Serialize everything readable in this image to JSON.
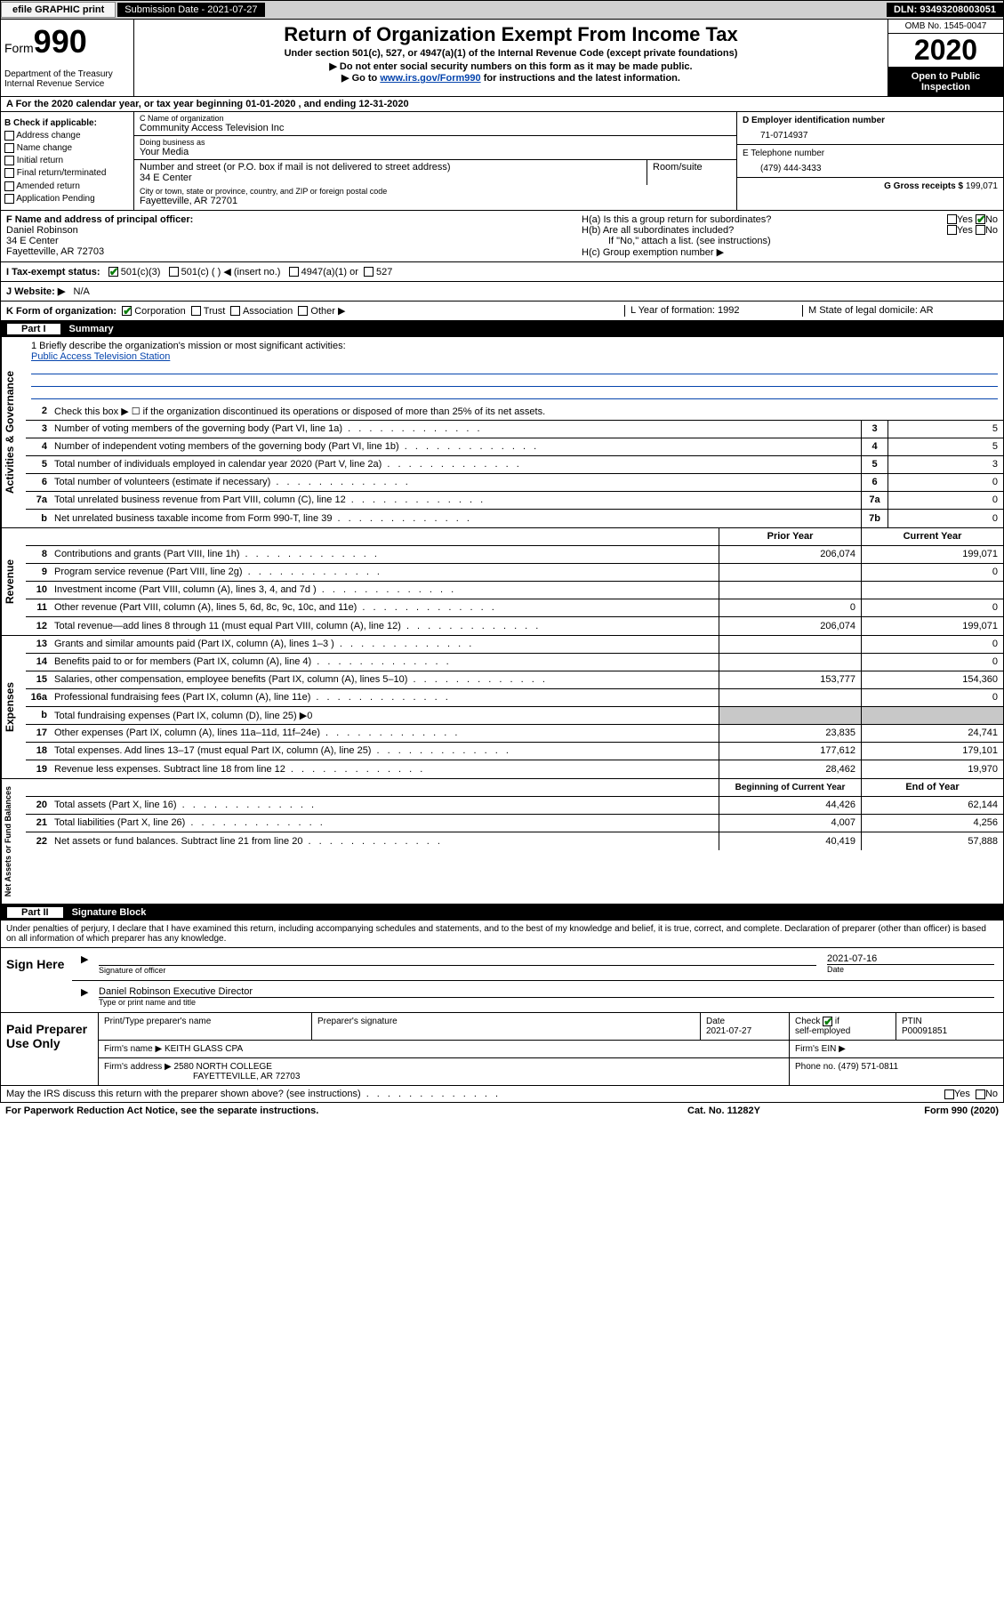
{
  "topbar": {
    "efile": "efile GRAPHIC print",
    "subdate_label": "Submission Date - 2021-07-27",
    "dln": "DLN: 93493208003051"
  },
  "header": {
    "form_label": "Form",
    "form_num": "990",
    "dept": "Department of the Treasury\nInternal Revenue Service",
    "title": "Return of Organization Exempt From Income Tax",
    "sub1": "Under section 501(c), 527, or 4947(a)(1) of the Internal Revenue Code (except private foundations)",
    "sub2": "▶ Do not enter social security numbers on this form as it may be made public.",
    "sub3_pre": "▶ Go to ",
    "sub3_link": "www.irs.gov/Form990",
    "sub3_post": " for instructions and the latest information.",
    "omb": "OMB No. 1545-0047",
    "year": "2020",
    "inspect1": "Open to Public",
    "inspect2": "Inspection"
  },
  "sectionA": "A For the 2020 calendar year, or tax year beginning 01-01-2020    , and ending 12-31-2020",
  "colB": {
    "hdr": "B Check if applicable:",
    "i1": "Address change",
    "i2": "Name change",
    "i3": "Initial return",
    "i4": "Final return/terminated",
    "i5": "Amended return",
    "i6": "Application Pending"
  },
  "colC": {
    "name_lbl": "C Name of organization",
    "name": "Community Access Television Inc",
    "dba_lbl": "Doing business as",
    "dba": "Your Media",
    "street_lbl": "Number and street (or P.O. box if mail is not delivered to street address)",
    "street": "34 E Center",
    "suite_lbl": "Room/suite",
    "city_lbl": "City or town, state or province, country, and ZIP or foreign postal code",
    "city": "Fayetteville, AR  72701"
  },
  "colDE": {
    "d_lbl": "D Employer identification number",
    "d_val": "71-0714937",
    "e_lbl": "E Telephone number",
    "e_val": "(479) 444-3433",
    "g_lbl": "G Gross receipts $ ",
    "g_val": "199,071"
  },
  "rowF": {
    "lbl": "F Name and address of principal officer:",
    "l1": "Daniel Robinson",
    "l2": "34 E Center",
    "l3": "Fayetteville, AR  72703",
    "ha": "H(a)  Is this a group return for subordinates?",
    "hb": "H(b)  Are all subordinates included?",
    "hb_note": "If \"No,\" attach a list. (see instructions)",
    "hc": "H(c)  Group exemption number ▶"
  },
  "taxRow": {
    "lbl": "I   Tax-exempt status:",
    "o1": "501(c)(3)",
    "o2": "501(c) (  ) ◀ (insert no.)",
    "o3": "4947(a)(1) or",
    "o4": "527"
  },
  "webRow": {
    "lbl": "J   Website: ▶",
    "val": "N/A"
  },
  "kRow": {
    "k": "K Form of organization:",
    "k1": "Corporation",
    "k2": "Trust",
    "k3": "Association",
    "k4": "Other ▶",
    "l": "L Year of formation: 1992",
    "m": "M State of legal domicile: AR"
  },
  "part1": {
    "num": "Part I",
    "title": "Summary"
  },
  "mission": {
    "l1": "1  Briefly describe the organization's mission or most significant activities:",
    "txt": "Public Access Television Station"
  },
  "lines_gov": [
    {
      "n": "2",
      "d": "Check this box ▶ ☐  if the organization discontinued its operations or disposed of more than 25% of its net assets."
    },
    {
      "n": "3",
      "d": "Number of voting members of the governing body (Part VI, line 1a)",
      "b": "3",
      "v": "5"
    },
    {
      "n": "4",
      "d": "Number of independent voting members of the governing body (Part VI, line 1b)",
      "b": "4",
      "v": "5"
    },
    {
      "n": "5",
      "d": "Total number of individuals employed in calendar year 2020 (Part V, line 2a)",
      "b": "5",
      "v": "3"
    },
    {
      "n": "6",
      "d": "Total number of volunteers (estimate if necessary)",
      "b": "6",
      "v": "0"
    },
    {
      "n": "7a",
      "d": "Total unrelated business revenue from Part VIII, column (C), line 12",
      "b": "7a",
      "v": "0"
    },
    {
      "n": "b",
      "d": "Net unrelated business taxable income from Form 990-T, line 39",
      "b": "7b",
      "v": "0"
    }
  ],
  "rev_hdr": {
    "py": "Prior Year",
    "cy": "Current Year"
  },
  "lines_rev": [
    {
      "n": "8",
      "d": "Contributions and grants (Part VIII, line 1h)",
      "py": "206,074",
      "cy": "199,071"
    },
    {
      "n": "9",
      "d": "Program service revenue (Part VIII, line 2g)",
      "py": "",
      "cy": "0"
    },
    {
      "n": "10",
      "d": "Investment income (Part VIII, column (A), lines 3, 4, and 7d )",
      "py": "",
      "cy": ""
    },
    {
      "n": "11",
      "d": "Other revenue (Part VIII, column (A), lines 5, 6d, 8c, 9c, 10c, and 11e)",
      "py": "0",
      "cy": "0"
    },
    {
      "n": "12",
      "d": "Total revenue—add lines 8 through 11 (must equal Part VIII, column (A), line 12)",
      "py": "206,074",
      "cy": "199,071"
    }
  ],
  "lines_exp": [
    {
      "n": "13",
      "d": "Grants and similar amounts paid (Part IX, column (A), lines 1–3 )",
      "py": "",
      "cy": "0"
    },
    {
      "n": "14",
      "d": "Benefits paid to or for members (Part IX, column (A), line 4)",
      "py": "",
      "cy": "0"
    },
    {
      "n": "15",
      "d": "Salaries, other compensation, employee benefits (Part IX, column (A), lines 5–10)",
      "py": "153,777",
      "cy": "154,360"
    },
    {
      "n": "16a",
      "d": "Professional fundraising fees (Part IX, column (A), line 11e)",
      "py": "",
      "cy": "0"
    },
    {
      "n": "b",
      "d": "Total fundraising expenses (Part IX, column (D), line 25) ▶0",
      "gray": true
    },
    {
      "n": "17",
      "d": "Other expenses (Part IX, column (A), lines 11a–11d, 11f–24e)",
      "py": "23,835",
      "cy": "24,741"
    },
    {
      "n": "18",
      "d": "Total expenses. Add lines 13–17 (must equal Part IX, column (A), line 25)",
      "py": "177,612",
      "cy": "179,101"
    },
    {
      "n": "19",
      "d": "Revenue less expenses. Subtract line 18 from line 12",
      "py": "28,462",
      "cy": "19,970"
    }
  ],
  "net_hdr": {
    "py": "Beginning of Current Year",
    "cy": "End of Year"
  },
  "lines_net": [
    {
      "n": "20",
      "d": "Total assets (Part X, line 16)",
      "py": "44,426",
      "cy": "62,144"
    },
    {
      "n": "21",
      "d": "Total liabilities (Part X, line 26)",
      "py": "4,007",
      "cy": "4,256"
    },
    {
      "n": "22",
      "d": "Net assets or fund balances. Subtract line 21 from line 20",
      "py": "40,419",
      "cy": "57,888"
    }
  ],
  "sidelabels": {
    "gov": "Activities & Governance",
    "rev": "Revenue",
    "exp": "Expenses",
    "net": "Net Assets or Fund Balances"
  },
  "part2": {
    "num": "Part II",
    "title": "Signature Block"
  },
  "sig_text": "Under penalties of perjury, I declare that I have examined this return, including accompanying schedules and statements, and to the best of my knowledge and belief, it is true, correct, and complete. Declaration of preparer (other than officer) is based on all information of which preparer has any knowledge.",
  "sign": {
    "lbl": "Sign Here",
    "sig_lbl": "Signature of officer",
    "date": "2021-07-16",
    "date_lbl": "Date",
    "name": "Daniel Robinson  Executive Director",
    "name_lbl": "Type or print name and title"
  },
  "prep": {
    "lbl": "Paid Preparer Use Only",
    "r1": {
      "c1": "Print/Type preparer's name",
      "c2": "Preparer's signature",
      "c3_lbl": "Date",
      "c3": "2021-07-27",
      "c4": "Check ☑ if self-employed",
      "c5_lbl": "PTIN",
      "c5": "P00091851"
    },
    "r2": {
      "c1_lbl": "Firm's name    ▶ ",
      "c1": "KEITH GLASS CPA",
      "c2": "Firm's EIN ▶"
    },
    "r3": {
      "c1_lbl": "Firm's address ▶ ",
      "c1a": "2580 NORTH COLLEGE",
      "c1b": "FAYETTEVILLE, AR  72703",
      "c2": "Phone no. (479) 571-0811"
    }
  },
  "discuss": "May the IRS discuss this return with the preparer shown above? (see instructions)",
  "footer": {
    "l": "For Paperwork Reduction Act Notice, see the separate instructions.",
    "m": "Cat. No. 11282Y",
    "r": "Form 990 (2020)"
  }
}
